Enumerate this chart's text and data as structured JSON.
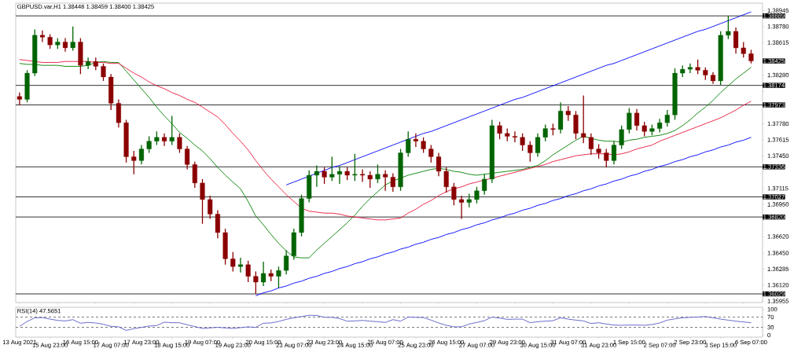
{
  "chart_data": [
    {
      "type": "candlestick",
      "title": "GBPUSD.var,H1  1.38446 1.38459 1.38400 1.38425",
      "categories": [
        null,
        null,
        null,
        null,
        null,
        null,
        null,
        null,
        null,
        null,
        null,
        null,
        null,
        null,
        null,
        null,
        null,
        null,
        null,
        null,
        null,
        null,
        null,
        null,
        null,
        null,
        null,
        null,
        null,
        null,
        null,
        null,
        null,
        null,
        null,
        null,
        null,
        null,
        null,
        null,
        null,
        null,
        null,
        null,
        null,
        null,
        null,
        null,
        null,
        null,
        null,
        null,
        null,
        null,
        null,
        null,
        null,
        null,
        null,
        null,
        null,
        null,
        null,
        null,
        null,
        null,
        null,
        null,
        null,
        null,
        null,
        null,
        null,
        null,
        null,
        null,
        null,
        null,
        null,
        null,
        null,
        null,
        null,
        null,
        null,
        null,
        null,
        null,
        null,
        null,
        null,
        null,
        null,
        null,
        null,
        null,
        null
      ],
      "ylim": [
        1.3594,
        1.3902
      ],
      "yticks": [
        1.38945,
        {
          "value": 1.3878,
          "label": "1.38780"
        },
        1.38615,
        {
          "value": 1.3845,
          "label": null
        },
        {
          "value": 1.3828,
          "label": "1.38280"
        },
        {
          "value": 1.38115,
          "label": null
        },
        {
          "value": 1.3795,
          "label": null
        },
        {
          "value": 1.3778,
          "label": "1.37780"
        },
        1.37615,
        {
          "value": 1.3745,
          "label": "1.37450"
        },
        {
          "value": 1.37285,
          "label": null
        },
        1.37115,
        {
          "value": 1.3695,
          "label": "1.36950"
        },
        {
          "value": 1.36785,
          "label": null
        },
        {
          "value": 1.3662,
          "label": "1.36620"
        },
        {
          "value": 1.3645,
          "label": "1.36450"
        },
        1.36285,
        {
          "value": 1.3612,
          "label": "1.36120"
        },
        1.35955
      ],
      "ohlc": [
        [
          1.3806,
          1.381,
          1.3797,
          1.3803
        ],
        [
          1.3803,
          1.3833,
          1.38,
          1.383
        ],
        [
          1.383,
          1.3875,
          1.3827,
          1.3869
        ],
        [
          1.3869,
          1.3874,
          1.3862,
          1.3867
        ],
        [
          1.3867,
          1.387,
          1.3855,
          1.3859
        ],
        [
          1.3859,
          1.3866,
          1.3855,
          1.3862
        ],
        [
          1.3862,
          1.3866,
          1.3852,
          1.3856
        ],
        [
          1.3856,
          1.3878,
          1.3853,
          1.3862
        ],
        [
          1.3862,
          1.3866,
          1.3829,
          1.3838
        ],
        [
          1.3838,
          1.3846,
          1.3834,
          1.3842
        ],
        [
          1.3842,
          1.3846,
          1.3833,
          1.3837
        ],
        [
          1.3837,
          1.384,
          1.3822,
          1.3826
        ],
        [
          1.3826,
          1.3829,
          1.3792,
          1.3799
        ],
        [
          1.3799,
          1.3803,
          1.3774,
          1.3779
        ],
        [
          1.3779,
          1.3782,
          1.3738,
          1.3744
        ],
        [
          1.3744,
          1.375,
          1.3726,
          1.374
        ],
        [
          1.374,
          1.3756,
          1.3736,
          1.3752
        ],
        [
          1.3752,
          1.3765,
          1.3748,
          1.376
        ],
        [
          1.376,
          1.377,
          1.3756,
          1.3764
        ],
        [
          1.3764,
          1.3768,
          1.3755,
          1.376
        ],
        [
          1.376,
          1.3786,
          1.3756,
          1.3764
        ],
        [
          1.3764,
          1.3768,
          1.3748,
          1.3752
        ],
        [
          1.3752,
          1.3755,
          1.3731,
          1.3736
        ],
        [
          1.3736,
          1.3739,
          1.3712,
          1.3717
        ],
        [
          1.3717,
          1.3721,
          1.3675,
          1.37
        ],
        [
          1.37,
          1.3704,
          1.368,
          1.3685
        ],
        [
          1.3685,
          1.3689,
          1.366,
          1.3666
        ],
        [
          1.3666,
          1.367,
          1.3633,
          1.3639
        ],
        [
          1.3639,
          1.3646,
          1.3626,
          1.3631
        ],
        [
          1.3631,
          1.364,
          1.3625,
          1.3633
        ],
        [
          1.3633,
          1.3637,
          1.3615,
          1.3621
        ],
        [
          1.3621,
          1.3626,
          1.3603,
          1.3615
        ],
        [
          1.3615,
          1.3636,
          1.3611,
          1.3624
        ],
        [
          1.3624,
          1.3628,
          1.3616,
          1.3621
        ],
        [
          1.3621,
          1.3631,
          1.3609,
          1.3627
        ],
        [
          1.3627,
          1.3648,
          1.3623,
          1.3642
        ],
        [
          1.3642,
          1.367,
          1.3638,
          1.3666
        ],
        [
          1.3666,
          1.3705,
          1.3662,
          1.3701
        ],
        [
          1.3701,
          1.373,
          1.3697,
          1.3725
        ],
        [
          1.3725,
          1.3735,
          1.3713,
          1.3729
        ],
        [
          1.3729,
          1.3733,
          1.3716,
          1.3723
        ],
        [
          1.3723,
          1.3744,
          1.3719,
          1.3726
        ],
        [
          1.3726,
          1.3734,
          1.3716,
          1.3729
        ],
        [
          1.3729,
          1.3733,
          1.372,
          1.3725
        ],
        [
          1.3725,
          1.3747,
          1.3719,
          1.3726
        ],
        [
          1.3726,
          1.3731,
          1.3718,
          1.3725
        ],
        [
          1.3725,
          1.3729,
          1.3712,
          1.3721
        ],
        [
          1.3721,
          1.3736,
          1.3717,
          1.3726
        ],
        [
          1.3726,
          1.373,
          1.3709,
          1.3723
        ],
        [
          1.3723,
          1.3727,
          1.3708,
          1.3713
        ],
        [
          1.3713,
          1.3752,
          1.3709,
          1.3748
        ],
        [
          1.3748,
          1.377,
          1.3744,
          1.3762
        ],
        [
          1.3762,
          1.3768,
          1.3754,
          1.376
        ],
        [
          1.376,
          1.3764,
          1.3748,
          1.3752
        ],
        [
          1.3752,
          1.3756,
          1.3738,
          1.3744
        ],
        [
          1.3744,
          1.3748,
          1.3724,
          1.3729
        ],
        [
          1.3729,
          1.3733,
          1.3707,
          1.3713
        ],
        [
          1.3713,
          1.3717,
          1.3694,
          1.37
        ],
        [
          1.37,
          1.3704,
          1.368,
          1.3697
        ],
        [
          1.3697,
          1.3706,
          1.3692,
          1.37
        ],
        [
          1.37,
          1.3713,
          1.3696,
          1.3709
        ],
        [
          1.3709,
          1.3726,
          1.3705,
          1.3721
        ],
        [
          1.3721,
          1.3782,
          1.3717,
          1.3776
        ],
        [
          1.3776,
          1.378,
          1.3762,
          1.3768
        ],
        [
          1.3768,
          1.3773,
          1.376,
          1.3765
        ],
        [
          1.3765,
          1.377,
          1.3759,
          1.3764
        ],
        [
          1.3764,
          1.3768,
          1.375,
          1.3756
        ],
        [
          1.3756,
          1.376,
          1.3739,
          1.3748
        ],
        [
          1.3748,
          1.3768,
          1.3744,
          1.3764
        ],
        [
          1.3764,
          1.3777,
          1.376,
          1.3773
        ],
        [
          1.3773,
          1.3778,
          1.3766,
          1.3772
        ],
        [
          1.3772,
          1.38,
          1.3768,
          1.3791
        ],
        [
          1.3791,
          1.3796,
          1.3781,
          1.3787
        ],
        [
          1.3787,
          1.3791,
          1.3762,
          1.3768
        ],
        [
          1.3768,
          1.3807,
          1.3758,
          1.3764
        ],
        [
          1.3764,
          1.3768,
          1.3746,
          1.3752
        ],
        [
          1.3752,
          1.3757,
          1.3742,
          1.3748
        ],
        [
          1.3748,
          1.3752,
          1.3733,
          1.374
        ],
        [
          1.374,
          1.376,
          1.3736,
          1.3756
        ],
        [
          1.3756,
          1.3776,
          1.3752,
          1.3772
        ],
        [
          1.3772,
          1.3794,
          1.3768,
          1.3789
        ],
        [
          1.3789,
          1.3793,
          1.3771,
          1.3776
        ],
        [
          1.3776,
          1.378,
          1.3765,
          1.377
        ],
        [
          1.377,
          1.3777,
          1.3766,
          1.3773
        ],
        [
          1.3773,
          1.3783,
          1.3769,
          1.3779
        ],
        [
          1.3779,
          1.3792,
          1.3775,
          1.3787
        ],
        [
          1.3787,
          1.3835,
          1.3782,
          1.383
        ],
        [
          1.383,
          1.3838,
          1.3826,
          1.3834
        ],
        [
          1.3834,
          1.384,
          1.383,
          1.3836
        ],
        [
          1.3836,
          1.3844,
          1.3829,
          1.3833
        ],
        [
          1.3833,
          1.3836,
          1.3823,
          1.3828
        ],
        [
          1.3828,
          1.3831,
          1.3819,
          1.3822
        ],
        [
          1.3822,
          1.3873,
          1.3818,
          1.3869
        ],
        [
          1.3869,
          1.3889,
          1.3865,
          1.3873
        ],
        [
          1.3873,
          1.3877,
          1.385,
          1.3856
        ],
        [
          1.3856,
          1.3862,
          1.3846,
          1.385
        ],
        [
          1.385,
          1.3854,
          1.384,
          1.38425
        ]
      ],
      "colors": [
        "#8b0000",
        "#006400",
        "#006400",
        "#8b0000",
        "#8b0000",
        "#006400",
        "#8b0000",
        "#006400",
        "#8b0000",
        "#006400",
        "#8b0000",
        "#8b0000",
        "#8b0000",
        "#8b0000",
        "#8b0000",
        "#8b0000",
        "#006400",
        "#006400",
        "#006400",
        "#8b0000",
        "#006400",
        "#8b0000",
        "#8b0000",
        "#8b0000",
        "#8b0000",
        "#8b0000",
        "#8b0000",
        "#8b0000",
        "#8b0000",
        "#006400",
        "#8b0000",
        "#8b0000",
        "#006400",
        "#8b0000",
        "#006400",
        "#006400",
        "#006400",
        "#006400",
        "#006400",
        "#006400",
        "#8b0000",
        "#006400",
        "#006400",
        "#8b0000",
        "#006400",
        "#8b0000",
        "#8b0000",
        "#006400",
        "#8b0000",
        "#8b0000",
        "#006400",
        "#006400",
        "#8b0000",
        "#8b0000",
        "#8b0000",
        "#8b0000",
        "#8b0000",
        "#8b0000",
        "#8b0000",
        "#006400",
        "#006400",
        "#006400",
        "#006400",
        "#8b0000",
        "#8b0000",
        "#8b0000",
        "#8b0000",
        "#8b0000",
        "#006400",
        "#006400",
        "#8b0000",
        "#006400",
        "#8b0000",
        "#8b0000",
        "#8b0000",
        "#8b0000",
        "#8b0000",
        "#8b0000",
        "#006400",
        "#006400",
        "#006400",
        "#8b0000",
        "#8b0000",
        "#006400",
        "#006400",
        "#006400",
        "#006400",
        "#006400",
        "#006400",
        "#8b0000",
        "#8b0000",
        "#8b0000",
        "#006400",
        "#006400",
        "#8b0000",
        "#8b0000",
        "#8b0000"
      ],
      "series": [
        {
          "type": "line",
          "color": "#008000",
          "values": [
            1.384,
            1.3839,
            1.3839,
            1.3838,
            1.3838,
            1.3838,
            1.3837,
            1.3837,
            1.3837,
            1.3838,
            1.3841,
            1.3842,
            1.3841,
            1.3841,
            1.3832,
            1.3823,
            1.3814,
            1.3805,
            1.3795,
            1.3786,
            1.3778,
            1.3769,
            1.3763,
            1.3756,
            1.375,
            1.3742,
            1.3733,
            1.3725,
            1.3718,
            1.3711,
            1.3698,
            1.3683,
            1.3674,
            1.3664,
            1.3655,
            1.3647,
            1.3641,
            1.364,
            1.364,
            1.3648,
            1.3655,
            1.3662,
            1.3669,
            1.3676,
            1.3684,
            1.3693,
            1.3701,
            1.3708,
            1.3715,
            1.3719,
            1.3722,
            1.3725,
            1.3727,
            1.3729,
            1.3731,
            1.3732,
            1.3731,
            1.3729,
            1.3728,
            1.3726,
            1.3725,
            1.3726,
            1.3727,
            1.3728,
            1.3729,
            1.373,
            1.3731,
            1.3733,
            1.3735,
            1.374,
            1.3746,
            1.3751,
            1.3756,
            1.3761,
            1.3765,
            1.3763,
            1.3761,
            1.376,
            1.376,
            1.3759,
            1.3761,
            1.3762,
            1.3764,
            1.3765,
            1.3766,
            1.3768,
            1.3771,
            1.3776,
            1.3782,
            1.3789,
            1.3795,
            1.3802,
            1.381,
            1.3817,
            1.3824,
            1.383,
            1.3836
          ]
        },
        {
          "type": "line",
          "color": "#e8173c",
          "values": [
            1.3844,
            1.3843,
            1.3842,
            1.3841,
            1.3841,
            1.3841,
            1.3842,
            1.3842,
            1.3842,
            1.3842,
            1.3841,
            1.3841,
            1.384,
            1.384,
            1.3835,
            1.383,
            1.3826,
            1.3821,
            1.3817,
            1.3814,
            1.381,
            1.3807,
            1.3803,
            1.38,
            1.3795,
            1.379,
            1.3785,
            1.3777,
            1.3768,
            1.376,
            1.3751,
            1.374,
            1.373,
            1.3721,
            1.3713,
            1.3705,
            1.3698,
            1.3691,
            1.3688,
            1.3687,
            1.3686,
            1.3686,
            1.3685,
            1.3683,
            1.3682,
            1.3681,
            1.368,
            1.3679,
            1.3679,
            1.368,
            1.3681,
            1.3686,
            1.369,
            1.3695,
            1.3699,
            1.3704,
            1.3708,
            1.3711,
            1.3713,
            1.3716,
            1.3718,
            1.372,
            1.3722,
            1.3724,
            1.3726,
            1.3728,
            1.373,
            1.3732,
            1.3734,
            1.3736,
            1.3739,
            1.3741,
            1.3743,
            1.3745,
            1.3746,
            1.3747,
            1.3747,
            1.3747,
            1.3746,
            1.3747,
            1.3749,
            1.3752,
            1.3754,
            1.3756,
            1.376,
            1.3763,
            1.3766,
            1.3769,
            1.3772,
            1.3775,
            1.3778,
            1.3781,
            1.3784,
            1.3788,
            1.3792,
            1.3797,
            1.3801
          ]
        },
        {
          "type": "line",
          "color": "#0000ff",
          "values": [
            null,
            null,
            null,
            null,
            null,
            null,
            null,
            null,
            null,
            null,
            null,
            null,
            null,
            null,
            null,
            null,
            null,
            null,
            null,
            null,
            null,
            null,
            null,
            null,
            null,
            null,
            null,
            null,
            null,
            null,
            null,
            null,
            null,
            null,
            null,
            1.3715,
            1.3718,
            1.3721,
            1.3724,
            1.3727,
            1.373,
            1.3733,
            1.3735,
            1.3738,
            1.3741,
            1.3744,
            1.3747,
            1.375,
            1.3753,
            1.3756,
            1.3759,
            1.3762,
            1.3765,
            1.3768,
            1.377,
            1.3773,
            1.3776,
            1.3779,
            1.3782,
            1.3785,
            1.3788,
            1.3791,
            1.3794,
            1.3797,
            1.38,
            1.3803,
            1.3805,
            1.3808,
            1.3811,
            1.3814,
            1.3817,
            1.382,
            1.3823,
            1.3826,
            1.3829,
            1.3832,
            1.3835,
            1.3838,
            1.384,
            1.3843,
            1.3846,
            1.3849,
            1.3852,
            1.3855,
            1.3858,
            1.3861,
            1.3864,
            1.3867,
            1.387,
            1.3873,
            1.3875,
            1.3878,
            1.3881,
            1.3884,
            1.3887,
            1.389,
            1.3893
          ]
        },
        {
          "type": "line",
          "color": "#0000ff",
          "values": [
            null,
            null,
            null,
            null,
            null,
            null,
            null,
            null,
            null,
            null,
            null,
            null,
            null,
            null,
            null,
            null,
            null,
            null,
            null,
            null,
            null,
            null,
            null,
            null,
            null,
            null,
            null,
            null,
            null,
            null,
            null,
            1.3601,
            1.3604,
            1.3606,
            1.3609,
            1.3611,
            1.3614,
            1.3616,
            1.3619,
            1.3621,
            1.3624,
            1.3626,
            1.3629,
            1.3631,
            1.3634,
            1.3636,
            1.3639,
            1.3641,
            1.3644,
            1.3646,
            1.3649,
            1.3651,
            1.3654,
            1.3656,
            1.3659,
            1.3661,
            1.3664,
            1.3666,
            1.3669,
            1.3671,
            1.3674,
            1.3676,
            1.3679,
            1.3681,
            1.3684,
            1.3686,
            1.3689,
            1.3691,
            1.3694,
            1.3696,
            1.3699,
            1.3701,
            1.3704,
            1.3706,
            1.3709,
            1.3711,
            1.3714,
            1.3716,
            1.3719,
            1.3721,
            1.3724,
            1.3726,
            1.3729,
            1.3731,
            1.3734,
            1.3736,
            1.3739,
            1.3741,
            1.3744,
            1.3746,
            1.3749,
            1.3751,
            1.3754,
            1.3756,
            1.3759,
            1.3761,
            1.3764
          ]
        }
      ],
      "ref_lines": [
        {
          "axis": "y",
          "value": 1.38889,
          "label": "1.38889",
          "color": "#000000"
        },
        {
          "axis": "y",
          "value": 1.38174,
          "label": "1.38174",
          "color": "#000000"
        },
        {
          "axis": "y",
          "value": 1.37973,
          "label": "1.37973",
          "color": "#000000"
        },
        {
          "axis": "y",
          "value": 1.37336,
          "label": "1.37336",
          "color": "#000000"
        },
        {
          "axis": "y",
          "value": 1.37027,
          "label": "1.37027",
          "color": "#000000"
        },
        {
          "axis": "y",
          "value": 1.3682,
          "label": "1.36820",
          "color": "#000000"
        },
        {
          "axis": "y",
          "value": 1.36029,
          "label": "1.36029",
          "color": "#000000"
        }
      ],
      "annotations": [
        "1.38425"
      ]
    },
    {
      "type": "line",
      "title": "RSI(14) 47.5651",
      "ylim": [
        -8,
        108
      ],
      "yticks": [
        0,
        30,
        70,
        100
      ],
      "categories": [
        "13 Aug 2021",
        null,
        null,
        null,
        "15 Aug 23:00",
        null,
        null,
        null,
        "16 Aug 15:00",
        null,
        null,
        null,
        "17 Aug 07:00",
        null,
        null,
        null,
        "17 Aug 23:00",
        null,
        null,
        null,
        "18 Aug 15:00",
        null,
        null,
        null,
        "19 Aug 07:00",
        null,
        null,
        null,
        "19 Aug 23:00",
        null,
        null,
        null,
        "20 Aug 15:00",
        null,
        null,
        null,
        "23 Aug 07:00",
        null,
        null,
        null,
        "23 Aug 23:00",
        null,
        null,
        null,
        "24 Aug 15:00",
        null,
        null,
        null,
        "25 Aug 07:00",
        null,
        null,
        null,
        "25 Aug 23:00",
        null,
        null,
        null,
        "26 Aug 15:00",
        null,
        null,
        null,
        "27 Aug 07:00",
        null,
        null,
        null,
        "29 Aug 23:00",
        null,
        null,
        null,
        "30 Aug 15:00",
        null,
        null,
        null,
        "31 Aug 07:00",
        null,
        null,
        null,
        "31 Aug 23:00",
        null,
        null,
        null,
        "1 Sep 15:00",
        null,
        null,
        null,
        "2 Sep 07:00",
        null,
        null,
        null,
        "2 Sep 23:00",
        null,
        null,
        null,
        "3 Sep 15:00",
        null,
        null,
        null,
        "6 Sep 07:00"
      ],
      "series": [
        {
          "color": "#5a5ac8",
          "values": [
            34,
            53,
            67,
            68,
            62,
            57,
            55,
            60,
            46,
            49,
            47,
            42,
            34,
            32,
            18,
            25,
            30,
            35,
            37,
            50,
            48,
            48,
            40,
            33,
            26,
            28,
            30,
            28,
            26,
            29,
            32,
            30,
            46,
            47,
            53,
            61,
            67,
            72,
            77,
            76,
            69,
            69,
            64,
            54,
            55,
            57,
            54,
            52,
            49,
            60,
            54,
            70,
            69,
            68,
            58,
            47,
            38,
            32,
            32,
            43,
            49,
            56,
            70,
            66,
            61,
            62,
            62,
            48,
            52,
            54,
            56,
            67,
            62,
            58,
            55,
            45,
            48,
            43,
            39,
            38,
            39,
            39,
            38,
            41,
            47,
            58,
            63,
            67,
            69,
            70,
            72,
            67,
            62,
            58,
            54,
            51,
            48
          ]
        }
      ],
      "ref_lines": [
        {
          "axis": "y",
          "value": 70,
          "color": "#555555",
          "line_style": "dashed"
        },
        {
          "axis": "y",
          "value": 30,
          "color": "#555555",
          "line_style": "dashed"
        }
      ]
    }
  ]
}
